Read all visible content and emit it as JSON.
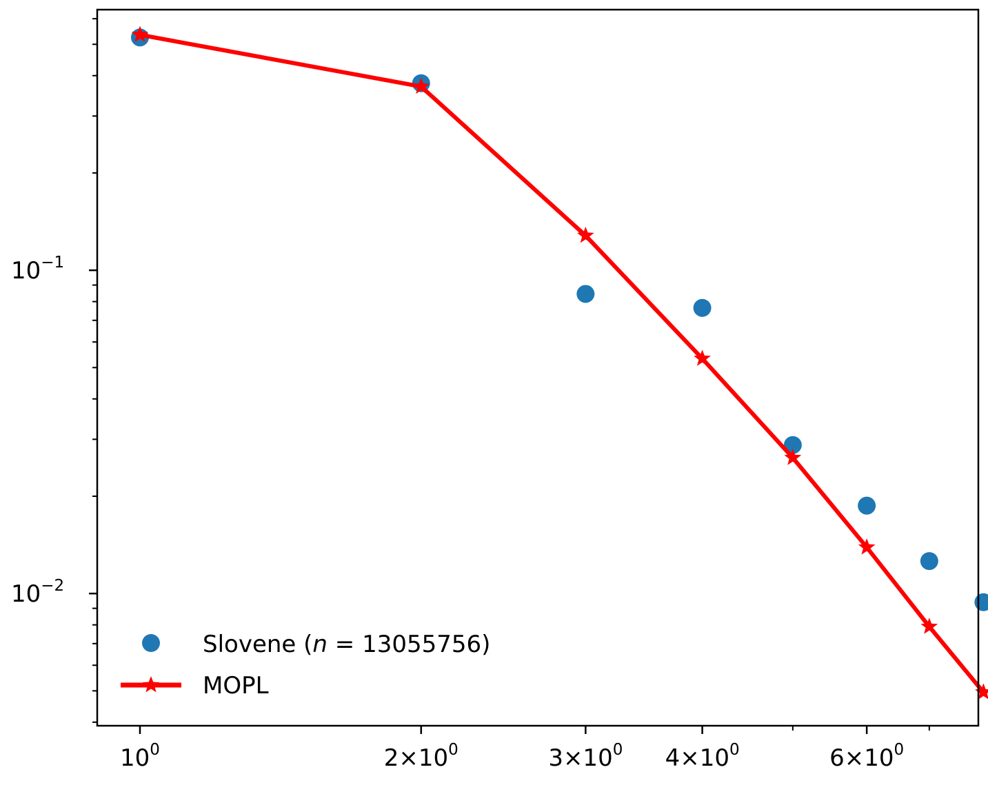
{
  "chart_data": {
    "type": "scatter",
    "x_scale": "log",
    "y_scale": "log",
    "xlim": [
      0.9,
      7.9
    ],
    "ylim": [
      0.0039,
      0.64
    ],
    "grid": false,
    "legend_position": "lower-left",
    "x_ticks": [
      {
        "value": 1,
        "mantissa": "",
        "sup": "0"
      },
      {
        "value": 2,
        "mantissa": "2×10",
        "sup": "0"
      },
      {
        "value": 3,
        "mantissa": "3×10",
        "sup": "0"
      },
      {
        "value": 4,
        "mantissa": "4×10",
        "sup": "0"
      },
      {
        "value": 6,
        "mantissa": "6×10",
        "sup": "0"
      }
    ],
    "y_ticks": [
      {
        "value": 0.1,
        "sup": "−1"
      },
      {
        "value": 0.01,
        "sup": "−2"
      }
    ],
    "series": [
      {
        "name": "Slovene (n = 13055756)",
        "legend_prefix": "Slovene (",
        "legend_var": "n",
        "legend_eq": " = 13055756)",
        "kind": "scatter",
        "color": "#1f77b4",
        "x": [
          1,
          2,
          3,
          4,
          5,
          6,
          7,
          8
        ],
        "y": [
          0.525,
          0.379,
          0.0845,
          0.0765,
          0.0288,
          0.0187,
          0.0126,
          0.0094
        ]
      },
      {
        "name": "MOPL",
        "kind": "line",
        "color": "#ff0000",
        "marker": "star",
        "x": [
          1,
          2,
          3,
          4,
          5,
          6,
          7,
          8
        ],
        "y": [
          0.535,
          0.37,
          0.128,
          0.0533,
          0.0263,
          0.0139,
          0.0079,
          0.00495
        ]
      }
    ]
  }
}
